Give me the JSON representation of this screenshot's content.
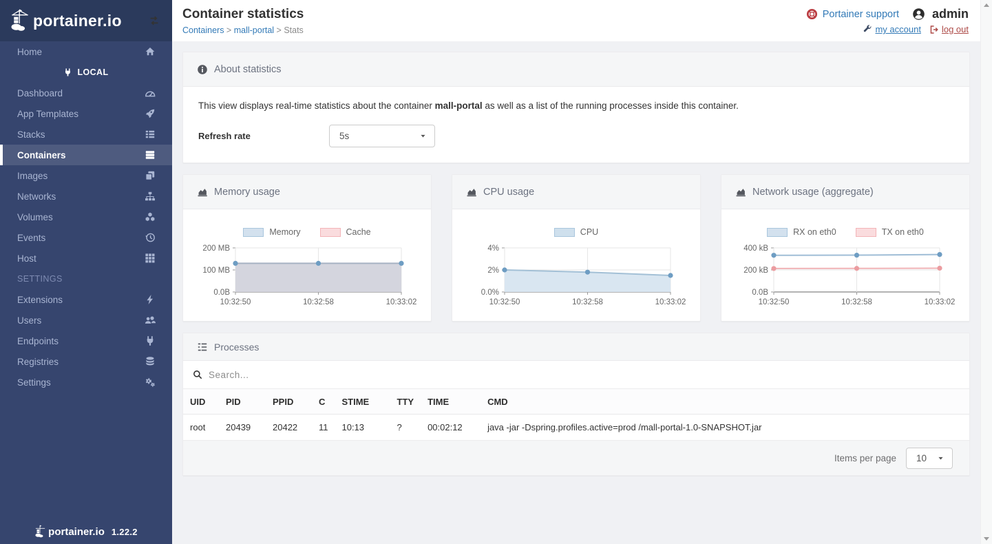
{
  "sidebar": {
    "logo_text": "portainer.io",
    "home_label": "Home",
    "endpoint_label": "LOCAL",
    "items": [
      {
        "label": "Dashboard",
        "icon": "tachometer",
        "active": false
      },
      {
        "label": "App Templates",
        "icon": "rocket",
        "active": false
      },
      {
        "label": "Stacks",
        "icon": "list",
        "active": false
      },
      {
        "label": "Containers",
        "icon": "server",
        "active": true
      },
      {
        "label": "Images",
        "icon": "clone",
        "active": false
      },
      {
        "label": "Networks",
        "icon": "sitemap",
        "active": false
      },
      {
        "label": "Volumes",
        "icon": "cubes",
        "active": false
      },
      {
        "label": "Events",
        "icon": "history",
        "active": false
      },
      {
        "label": "Host",
        "icon": "th",
        "active": false
      }
    ],
    "settings_header": "SETTINGS",
    "settings_items": [
      {
        "label": "Extensions",
        "icon": "bolt",
        "active": false
      },
      {
        "label": "Users",
        "icon": "users",
        "active": false
      },
      {
        "label": "Endpoints",
        "icon": "plug",
        "active": false
      },
      {
        "label": "Registries",
        "icon": "database",
        "active": false
      },
      {
        "label": "Settings",
        "icon": "cogs",
        "active": false
      }
    ],
    "footer": {
      "logo_text": "portainer.io",
      "version": "1.22.2"
    }
  },
  "header": {
    "title": "Container statistics",
    "breadcrumb": [
      {
        "label": "Containers",
        "link": true
      },
      {
        "label": "mall-portal",
        "link": true
      },
      {
        "label": "Stats",
        "link": false
      }
    ],
    "support_label": "Portainer support",
    "username": "admin",
    "my_account_label": "my account",
    "logout_label": "log out"
  },
  "about": {
    "title": "About statistics",
    "description_prefix": "This view displays real-time statistics about the container ",
    "container_name": "mall-portal",
    "description_suffix": " as well as a list of the running processes inside this container.",
    "refresh_rate_label": "Refresh rate",
    "refresh_rate_value": "5s"
  },
  "chart_data": [
    {
      "type": "area",
      "title": "Memory usage",
      "x": [
        "10:32:50",
        "10:32:58",
        "10:33:02"
      ],
      "ylim": [
        0,
        200
      ],
      "yticks": [
        "200 MB",
        "100 MB",
        "0.0B"
      ],
      "ylabel": "",
      "xlabel": "",
      "grid": true,
      "legend_position": "top",
      "series": [
        {
          "name": "Memory",
          "values": [
            130,
            130,
            130
          ],
          "unit": "MB",
          "line": "#a6b2c3",
          "fill": "#d4d5de",
          "point": "#6e9dc3",
          "legend_fill": "#d3e1ee",
          "legend_border": "#a9c6dd",
          "draw": true
        },
        {
          "name": "Cache",
          "values": [
            0,
            0,
            0
          ],
          "unit": "MB",
          "line": "#f0b3b6",
          "fill": "none",
          "point": "#eb9ca0",
          "legend_fill": "#fadcde",
          "legend_border": "#f3b4b8",
          "draw": false
        }
      ]
    },
    {
      "type": "area",
      "title": "CPU usage",
      "x": [
        "10:32:50",
        "10:32:58",
        "10:33:02"
      ],
      "ylim": [
        0,
        4
      ],
      "yticks": [
        "4%",
        "2%",
        "0.0%"
      ],
      "ylabel": "",
      "xlabel": "",
      "grid": true,
      "legend_position": "top",
      "series": [
        {
          "name": "CPU",
          "values": [
            2.0,
            1.8,
            1.5
          ],
          "unit": "%",
          "line": "#a3c0d6",
          "fill": "#d9e6f1",
          "point": "#6e9dc3",
          "legend_fill": "#cfe0ed",
          "legend_border": "#a9c6dd",
          "draw": true
        }
      ]
    },
    {
      "type": "line",
      "title": "Network usage (aggregate)",
      "x": [
        "10:32:50",
        "10:32:58",
        "10:33:02"
      ],
      "ylim": [
        0,
        400
      ],
      "yticks": [
        "400 kB",
        "200 kB",
        "0.0B"
      ],
      "ylabel": "",
      "xlabel": "",
      "grid": true,
      "legend_position": "top",
      "series": [
        {
          "name": "RX on eth0",
          "values": [
            333,
            334,
            340
          ],
          "unit": "kB",
          "line": "#9fbdd6",
          "fill": "none",
          "point": "#6e9dc3",
          "legend_fill": "#d3e1ee",
          "legend_border": "#a9c6dd",
          "draw": true
        },
        {
          "name": "TX on eth0",
          "values": [
            213,
            214,
            216
          ],
          "unit": "kB",
          "line": "#f0b3b6",
          "fill": "none",
          "point": "#eb9ca0",
          "legend_fill": "#fadcde",
          "legend_border": "#f3b4b8",
          "draw": true
        }
      ]
    }
  ],
  "processes": {
    "title": "Processes",
    "search_placeholder": "Search...",
    "columns": [
      "UID",
      "PID",
      "PPID",
      "C",
      "STIME",
      "TTY",
      "TIME",
      "CMD"
    ],
    "rows": [
      [
        "root",
        "20439",
        "20422",
        "11",
        "10:13",
        "?",
        "00:02:12",
        "java -jar -Dspring.profiles.active=prod /mall-portal-1.0-SNAPSHOT.jar"
      ]
    ],
    "items_per_page_label": "Items per page",
    "items_per_page_value": "10"
  },
  "colors": {
    "accent_link": "#337ab7",
    "logout_red": "#ad4a47",
    "support_icon_red": "#bb3e43",
    "sidebar_bg": "#36456e",
    "sidebar_header_bg": "#2b3a5c",
    "page_bg": "#f0f1f4",
    "panel_header_bg": "#f5f6f7"
  }
}
